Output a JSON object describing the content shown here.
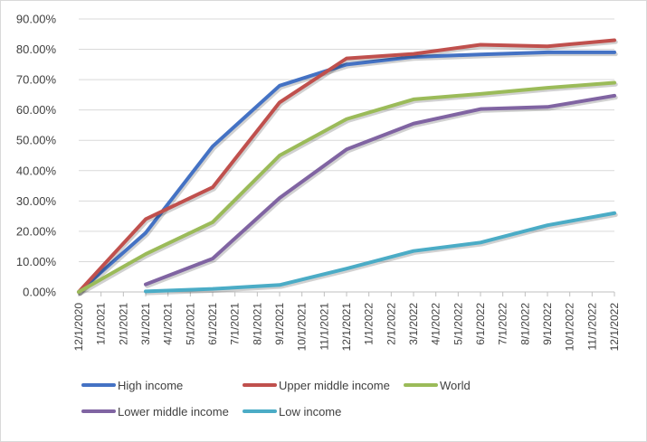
{
  "chart_data": {
    "type": "line",
    "title": "",
    "xlabel": "",
    "ylabel": "",
    "ylim": [
      0,
      90
    ],
    "y_ticks": [
      "0.00%",
      "10.00%",
      "20.00%",
      "30.00%",
      "40.00%",
      "50.00%",
      "60.00%",
      "70.00%",
      "80.00%",
      "90.00%"
    ],
    "categories": [
      "12/1/2020",
      "1/1/2021",
      "2/1/2021",
      "3/1/2021",
      "4/1/2021",
      "5/1/2021",
      "6/1/2021",
      "7/1/2021",
      "8/1/2021",
      "9/1/2021",
      "10/1/2021",
      "11/1/2021",
      "12/1/2021",
      "1/1/2022",
      "2/1/2022",
      "3/1/2022",
      "4/1/2022",
      "5/1/2022",
      "6/1/2022",
      "7/1/2022",
      "8/1/2022",
      "9/1/2022",
      "10/1/2022",
      "11/1/2022",
      "12/1/2022"
    ],
    "series": [
      {
        "name": "High income",
        "color": "#4472c4",
        "points": [
          [
            0,
            0
          ],
          [
            3,
            19.5
          ],
          [
            6,
            48
          ],
          [
            9,
            68
          ],
          [
            12,
            75
          ],
          [
            15,
            77.5
          ],
          [
            18,
            78.3
          ],
          [
            21,
            79
          ],
          [
            24,
            79
          ]
        ]
      },
      {
        "name": "Upper middle income",
        "color": "#c0504d",
        "points": [
          [
            0,
            0
          ],
          [
            3,
            24
          ],
          [
            6,
            34.5
          ],
          [
            9,
            62.5
          ],
          [
            12,
            77
          ],
          [
            15,
            78.5
          ],
          [
            18,
            81.5
          ],
          [
            21,
            81
          ],
          [
            24,
            83
          ]
        ]
      },
      {
        "name": "World",
        "color": "#9bbb59",
        "points": [
          [
            0,
            0
          ],
          [
            3,
            12.5
          ],
          [
            6,
            23
          ],
          [
            9,
            45
          ],
          [
            12,
            57
          ],
          [
            15,
            63.5
          ],
          [
            18,
            65.3
          ],
          [
            21,
            67.3
          ],
          [
            24,
            69
          ]
        ]
      },
      {
        "name": "Lower middle income",
        "color": "#8064a2",
        "points": [
          [
            3,
            2.5
          ],
          [
            6,
            11
          ],
          [
            9,
            31
          ],
          [
            12,
            47
          ],
          [
            15,
            55.5
          ],
          [
            18,
            60.3
          ],
          [
            21,
            61
          ],
          [
            24,
            64.7
          ]
        ]
      },
      {
        "name": "Low income",
        "color": "#4bacc6",
        "points": [
          [
            3,
            0.2
          ],
          [
            6,
            1
          ],
          [
            9,
            2.3
          ],
          [
            12,
            7.7
          ],
          [
            15,
            13.5
          ],
          [
            18,
            16.3
          ],
          [
            21,
            22
          ],
          [
            24,
            26
          ]
        ]
      }
    ],
    "legend": {
      "position": "bottom"
    }
  }
}
